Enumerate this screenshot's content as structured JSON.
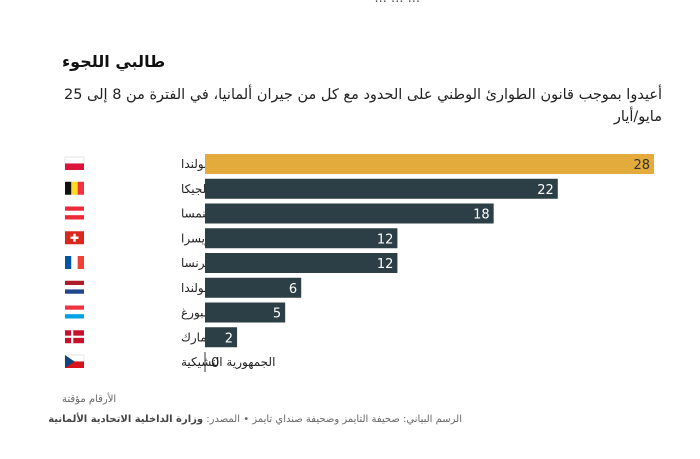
{
  "top_fragment": "... ... ...",
  "title": "طالبي اللجوء",
  "subtitle": "أعيدوا بموجب قانون الطوارئ الوطني على الحدود مع كل من جيران ألمانيا، في الفترة من 8 إلى 25 مايو/أيار",
  "note": "الأرقام مؤقتة",
  "footer": {
    "credit_label": "الرسم البياني:",
    "credit_value": "صحيفة التايمز وصحيفة صنداي تايمز",
    "separator": "•",
    "source_label": "المصدر:",
    "source_value": "وزارة الداخلية الاتحادية الألمانية"
  },
  "chart_data": {
    "type": "bar",
    "orientation": "horizontal",
    "categories": [
      "بولندا",
      "بلجيكا",
      "النمسا",
      "سويسرا",
      "فرنسا",
      "هولندا",
      "لوكسمبورغ",
      "الدنمارك",
      "الجمهورية التشيكية"
    ],
    "flags": [
      "poland-flag-icon",
      "belgium-flag-icon",
      "austria-flag-icon",
      "switzerland-flag-icon",
      "france-flag-icon",
      "netherlands-flag-icon",
      "luxembourg-flag-icon",
      "denmark-flag-icon",
      "czech-flag-icon"
    ],
    "values": [
      28,
      22,
      18,
      12,
      12,
      6,
      5,
      2,
      0
    ],
    "xlim": [
      0,
      28
    ],
    "highlight_index": 0,
    "colors": {
      "highlight": "#E2AB3B",
      "default": "#2C3E46",
      "highlight_text": "#333333",
      "default_text": "#ffffff"
    },
    "grid": false,
    "legend": false
  }
}
